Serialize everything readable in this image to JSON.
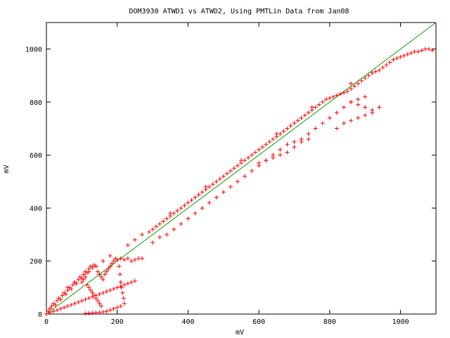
{
  "chart_data": {
    "type": "scatter",
    "title": "DOM3930 ATWD1 vs ATWD2, Using PMTLin Data from Jan08",
    "xlabel": "mV",
    "ylabel": "mV",
    "xlim": [
      0,
      1100
    ],
    "ylim": [
      0,
      1100
    ],
    "xticks": [
      0,
      200,
      400,
      600,
      800,
      1000
    ],
    "yticks": [
      0,
      200,
      400,
      600,
      800,
      1000
    ],
    "grid": false,
    "marker_color": "#ff0000",
    "line_color": "#00a000",
    "series": [
      {
        "kind": "points",
        "x": [
          0,
          5,
          10,
          15,
          20,
          25,
          30,
          35,
          40,
          45,
          50,
          55,
          60,
          65,
          70,
          75,
          80,
          85,
          90,
          95,
          100,
          105,
          110,
          115,
          120,
          125,
          130,
          135,
          140,
          145,
          150,
          155,
          160,
          165,
          170,
          175,
          180,
          185,
          190,
          195,
          200,
          210,
          220,
          230,
          240,
          250,
          260,
          270,
          10,
          20,
          30,
          40,
          50,
          60,
          70,
          80,
          90,
          100,
          110,
          120,
          130,
          140,
          150,
          160,
          170,
          180,
          190,
          200,
          210,
          220,
          230,
          240,
          250,
          100,
          105,
          110,
          115,
          120,
          125,
          130,
          135,
          140,
          145,
          150,
          155,
          205,
          208,
          210,
          212,
          215,
          218,
          220,
          210,
          200,
          190,
          180,
          170,
          160,
          150,
          140,
          130,
          120,
          110,
          290,
          300,
          310,
          320,
          330,
          340,
          350,
          360,
          370,
          380,
          390,
          400,
          410,
          420,
          430,
          440,
          450,
          460,
          470,
          480,
          490,
          500,
          510,
          520,
          530,
          540,
          550,
          560,
          570,
          580,
          590,
          600,
          610,
          620,
          630,
          640,
          650,
          660,
          670,
          680,
          690,
          700,
          710,
          720,
          730,
          740,
          750,
          760,
          770,
          780,
          790,
          800,
          810,
          820,
          830,
          840,
          850,
          860,
          870,
          880,
          890,
          900,
          910,
          920,
          930,
          940,
          950,
          960,
          970,
          980,
          990,
          1000,
          1010,
          1020,
          1030,
          1040,
          1050,
          1060,
          1070,
          1080,
          1090,
          300,
          320,
          340,
          360,
          380,
          400,
          420,
          440,
          460,
          480,
          500,
          520,
          540,
          560,
          580,
          600,
          620,
          640,
          660,
          680,
          700,
          720,
          740,
          760,
          780,
          800,
          820,
          840,
          860,
          880,
          900,
          600,
          620,
          640,
          660,
          680,
          700,
          720,
          740,
          820,
          840,
          860,
          880,
          900,
          920,
          940,
          860,
          880,
          900,
          920,
          60,
          80,
          120,
          140,
          160,
          180,
          230,
          250,
          270,
          350,
          450,
          550,
          650,
          750,
          860,
          920
        ],
        "y": [
          0,
          10,
          20,
          30,
          40,
          35,
          50,
          60,
          55,
          70,
          80,
          75,
          90,
          100,
          95,
          110,
          120,
          115,
          130,
          140,
          135,
          150,
          160,
          155,
          170,
          180,
          175,
          185,
          180,
          160,
          150,
          140,
          130,
          150,
          160,
          170,
          180,
          190,
          200,
          210,
          205,
          210,
          205,
          210,
          200,
          205,
          210,
          210,
          5,
          10,
          15,
          20,
          25,
          30,
          35,
          40,
          45,
          50,
          55,
          60,
          65,
          70,
          75,
          80,
          85,
          90,
          95,
          100,
          105,
          110,
          115,
          120,
          125,
          120,
          130,
          140,
          110,
          100,
          90,
          80,
          70,
          60,
          50,
          40,
          30,
          180,
          150,
          120,
          100,
          80,
          60,
          40,
          30,
          25,
          20,
          15,
          10,
          8,
          6,
          5,
          4,
          3,
          2,
          310,
          320,
          330,
          340,
          350,
          360,
          370,
          380,
          390,
          400,
          410,
          420,
          430,
          440,
          450,
          460,
          470,
          480,
          490,
          500,
          510,
          520,
          530,
          540,
          550,
          560,
          570,
          580,
          590,
          600,
          610,
          620,
          630,
          640,
          650,
          660,
          670,
          680,
          690,
          700,
          710,
          720,
          730,
          740,
          750,
          760,
          770,
          780,
          790,
          800,
          810,
          815,
          820,
          825,
          830,
          835,
          840,
          850,
          860,
          870,
          880,
          890,
          900,
          910,
          915,
          920,
          930,
          940,
          950,
          960,
          965,
          970,
          975,
          980,
          985,
          990,
          990,
          995,
          1000,
          1000,
          995,
          270,
          290,
          300,
          320,
          340,
          360,
          380,
          400,
          420,
          440,
          460,
          480,
          500,
          520,
          540,
          560,
          580,
          600,
          620,
          640,
          650,
          660,
          680,
          700,
          720,
          740,
          760,
          780,
          800,
          810,
          820,
          570,
          580,
          590,
          600,
          610,
          630,
          650,
          660,
          700,
          720,
          730,
          740,
          750,
          760,
          780,
          800,
          790,
          780,
          770,
          100,
          120,
          160,
          180,
          200,
          220,
          260,
          280,
          300,
          380,
          480,
          580,
          680,
          780,
          870,
          910
        ]
      },
      {
        "kind": "line",
        "x": [
          0,
          1100
        ],
        "y": [
          0,
          1100
        ]
      }
    ]
  }
}
